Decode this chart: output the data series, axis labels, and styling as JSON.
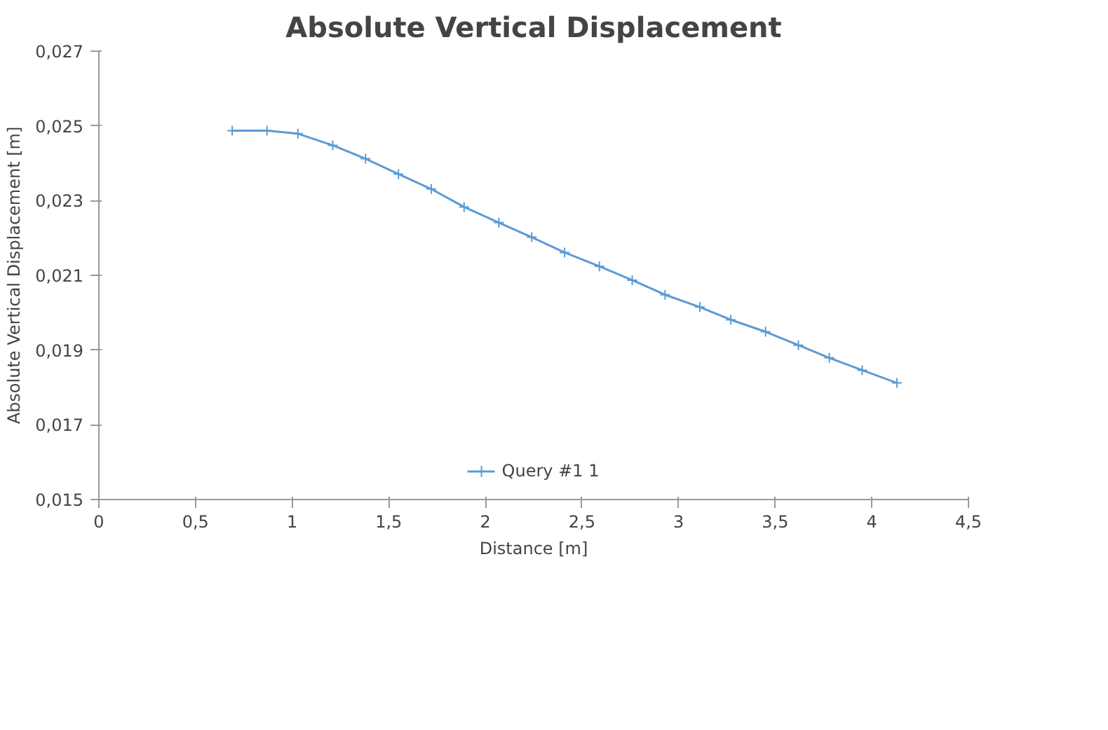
{
  "chart_data": {
    "type": "line",
    "title": "Absolute Vertical Displacement",
    "xlabel": "Distance [m]",
    "ylabel": "Absolute Vertical Displacement [m]",
    "x": [
      0.69,
      0.87,
      1.03,
      1.21,
      1.38,
      1.55,
      1.72,
      1.89,
      2.07,
      2.24,
      2.41,
      2.59,
      2.76,
      2.93,
      3.11,
      3.27,
      3.45,
      3.62,
      3.78,
      3.95,
      4.13
    ],
    "series": [
      {
        "name": "Query #1 1",
        "color": "#5b9bd5",
        "values": [
          0.02487,
          0.02487,
          0.02479,
          0.02448,
          0.02412,
          0.02371,
          0.02331,
          0.02283,
          0.02241,
          0.02202,
          0.02161,
          0.02124,
          0.02087,
          0.02048,
          0.02015,
          0.01981,
          0.01949,
          0.01913,
          0.01879,
          0.01846,
          0.01812
        ]
      }
    ],
    "xlim": [
      0,
      4.5
    ],
    "ylim": [
      0.015,
      0.027
    ],
    "xticks": [
      0,
      {
        "value": 0.5,
        "label": "0,5"
      },
      1,
      {
        "value": 1.5,
        "label": "1,5"
      },
      2,
      {
        "value": 2.5,
        "label": "2,5"
      },
      3,
      {
        "value": 3.5,
        "label": "3,5"
      },
      4,
      {
        "value": 4.5,
        "label": "4,5"
      }
    ],
    "yticks": [
      {
        "value": 0.015,
        "label": "0,015"
      },
      {
        "value": 0.017,
        "label": "0,017"
      },
      {
        "value": 0.019,
        "label": "0,019"
      },
      {
        "value": 0.021,
        "label": "0,021"
      },
      {
        "value": 0.023,
        "label": "0,023"
      },
      {
        "value": 0.025,
        "label": "0,025"
      },
      {
        "value": 0.027,
        "label": "0,027"
      }
    ],
    "grid": false,
    "legend": "bottom",
    "marker": "cross",
    "line_style": "solid"
  }
}
